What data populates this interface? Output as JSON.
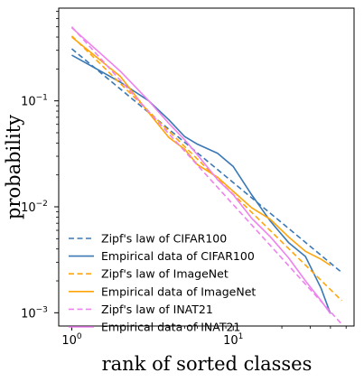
{
  "chart_data": {
    "type": "line",
    "title": "",
    "xlabel": "rank of sorted classes",
    "ylabel": "probability",
    "xscale": "log",
    "yscale": "log",
    "xlim": [
      0.83,
      56
    ],
    "ylim": [
      0.00075,
      0.75
    ],
    "x_ticks": [
      {
        "value": 1,
        "label": "10",
        "exp": "0"
      },
      {
        "value": 10,
        "label": "10",
        "exp": "1"
      }
    ],
    "y_ticks": [
      {
        "value": 0.001,
        "label": "10",
        "exp": "−3"
      },
      {
        "value": 0.01,
        "label": "10",
        "exp": "−2"
      },
      {
        "value": 0.1,
        "label": "10",
        "exp": "−1"
      }
    ],
    "grid": false,
    "legend_position": "lower-left",
    "series": [
      {
        "name": "Zipf's law of CIFAR100",
        "color": "#3a78b5",
        "dash": "dashed",
        "x": [
          1,
          47
        ],
        "y": [
          0.31,
          0.0024
        ]
      },
      {
        "name": "Empirical data of CIFAR100",
        "color": "#3a78b5",
        "dash": "solid",
        "x": [
          1,
          2,
          3,
          4,
          5,
          6,
          8,
          10,
          13,
          17,
          22,
          28,
          35,
          40
        ],
        "y": [
          0.27,
          0.15,
          0.1,
          0.066,
          0.046,
          0.039,
          0.032,
          0.024,
          0.013,
          0.0073,
          0.0046,
          0.0034,
          0.0017,
          0.00098
        ]
      },
      {
        "name": "Zipf's law of ImageNet",
        "color": "#ffa50a",
        "dash": "dashed",
        "x": [
          1,
          47
        ],
        "y": [
          0.41,
          0.0013
        ]
      },
      {
        "name": "Empirical data of ImageNet",
        "color": "#ffa50a",
        "dash": "solid",
        "x": [
          1,
          2,
          3,
          4,
          5,
          6,
          8,
          10,
          13,
          17,
          22,
          28,
          35,
          40
        ],
        "y": [
          0.4,
          0.17,
          0.077,
          0.045,
          0.035,
          0.025,
          0.019,
          0.014,
          0.0098,
          0.0076,
          0.0052,
          0.0038,
          0.0032,
          0.0028
        ]
      },
      {
        "name": "Zipf's law of INAT21",
        "color": "#ee82ee",
        "dash": "dashed",
        "x": [
          1,
          47
        ],
        "y": [
          0.5,
          0.00078
        ]
      },
      {
        "name": "Empirical data of INAT21",
        "color": "#ee82ee",
        "dash": "solid",
        "x": [
          1,
          2,
          3,
          4,
          5,
          6,
          8,
          10,
          13,
          17,
          22,
          28,
          35,
          40
        ],
        "y": [
          0.49,
          0.19,
          0.1,
          0.061,
          0.043,
          0.031,
          0.018,
          0.013,
          0.0078,
          0.0052,
          0.0033,
          0.002,
          0.0013,
          0.00098
        ]
      }
    ]
  }
}
